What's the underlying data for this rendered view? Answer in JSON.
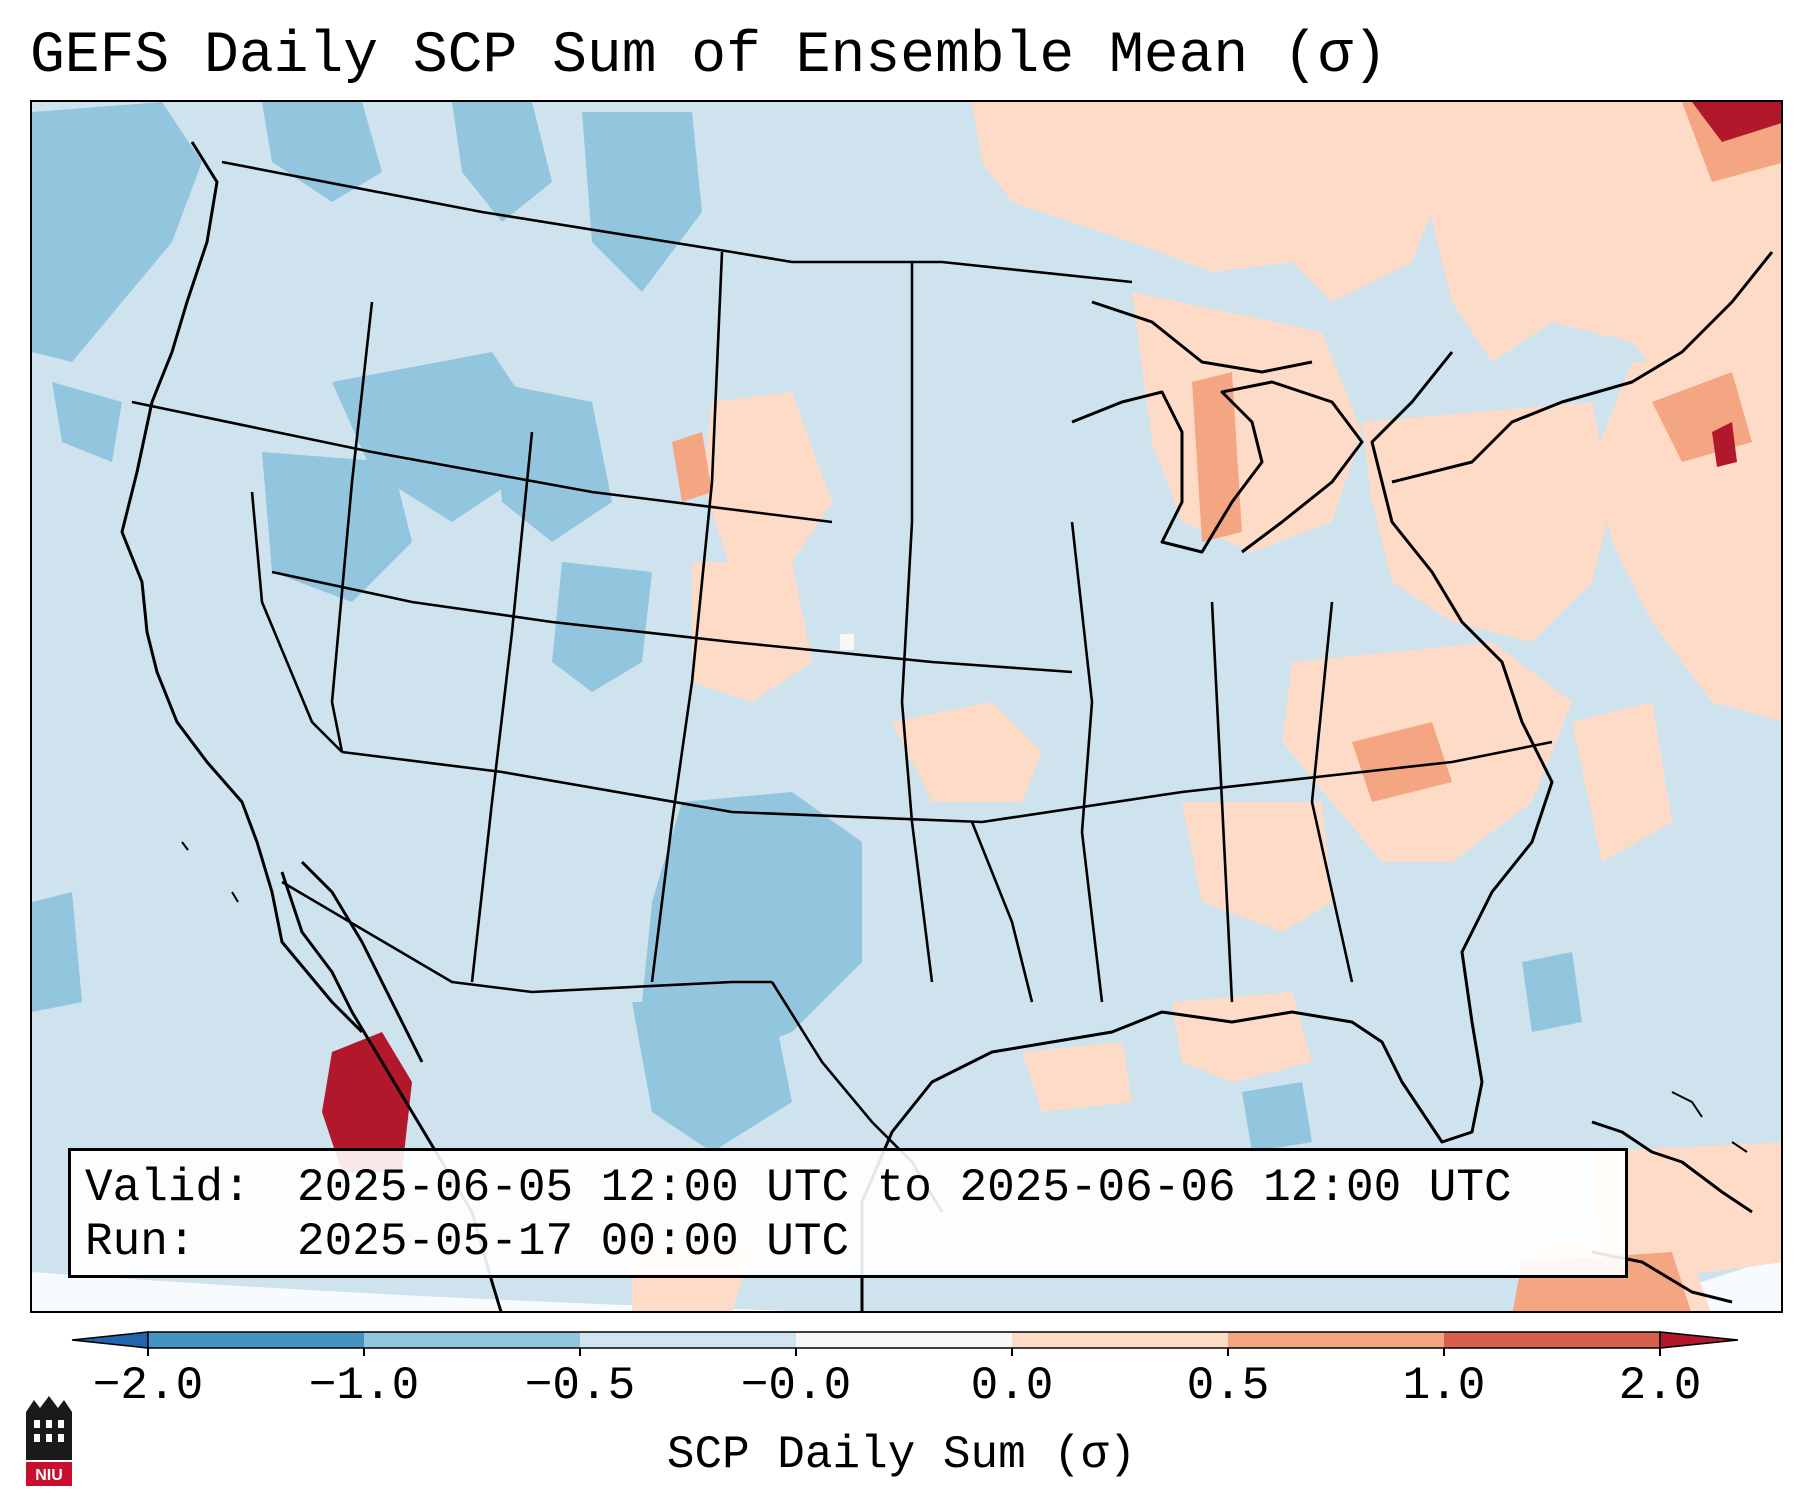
{
  "title": "GEFS Daily SCP Sum of Ensemble Mean (σ)",
  "info": {
    "valid_label": "Valid:",
    "valid_value": "2025-06-05 12:00 UTC to 2025-06-06 12:00 UTC",
    "run_label": "Run:",
    "run_value": "2025-05-17 00:00 UTC"
  },
  "colorbar": {
    "title": "SCP Daily Sum (σ)",
    "ticks": [
      "−2.0",
      "−1.0",
      "−0.5",
      "−0.0",
      "0.0",
      "0.5",
      "1.0",
      "2.0"
    ],
    "bins": [
      {
        "range": "< -2.0",
        "color": "#2166ac"
      },
      {
        "range": "-2.0 to -1.0",
        "color": "#4393c3"
      },
      {
        "range": "-1.0 to -0.5",
        "color": "#92c5de"
      },
      {
        "range": "-0.5 to -0.0",
        "color": "#d1e5f0"
      },
      {
        "range": "-0.0 to 0.0",
        "color": "#f7f7f7"
      },
      {
        "range": "0.0 to 0.5",
        "color": "#fddbc7"
      },
      {
        "range": "0.5 to 1.0",
        "color": "#f4a582"
      },
      {
        "range": "1.0 to 2.0",
        "color": "#d6604d"
      },
      {
        "range": "> 2.0",
        "color": "#b2182b"
      }
    ]
  },
  "logo": {
    "text": "NIU"
  },
  "colors": {
    "background_field": "#cfe3ef",
    "border": "#000000"
  }
}
